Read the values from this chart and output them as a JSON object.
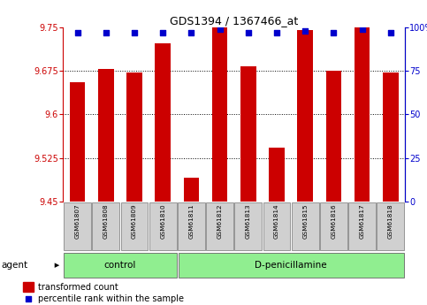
{
  "title": "GDS1394 / 1367466_at",
  "samples": [
    "GSM61807",
    "GSM61808",
    "GSM61809",
    "GSM61810",
    "GSM61811",
    "GSM61812",
    "GSM61813",
    "GSM61814",
    "GSM61815",
    "GSM61816",
    "GSM61817",
    "GSM61818"
  ],
  "bar_values": [
    9.655,
    9.678,
    9.672,
    9.722,
    9.49,
    9.75,
    9.683,
    9.542,
    9.745,
    9.676,
    9.75,
    9.673
  ],
  "percentile_ranks": [
    97,
    97,
    97,
    97,
    97,
    99,
    97,
    97,
    98,
    97,
    99,
    97
  ],
  "bar_bottom": 9.45,
  "ylim_left": [
    9.45,
    9.75
  ],
  "ylim_right": [
    0,
    100
  ],
  "yticks_left": [
    9.45,
    9.525,
    9.6,
    9.675,
    9.75
  ],
  "ytick_labels_left": [
    "9.45",
    "9.525",
    "9.6",
    "9.675",
    "9.75"
  ],
  "ytick_labels_right": [
    "0",
    "25",
    "50",
    "75",
    "100%"
  ],
  "bar_color": "#cc0000",
  "dot_color": "#0000cc",
  "n_control": 4,
  "n_treatment": 8,
  "control_label": "control",
  "treatment_label": "D-penicillamine",
  "agent_label": "agent",
  "legend_bar_label": "transformed count",
  "legend_dot_label": "percentile rank within the sample",
  "sample_label_bg": "#d0d0d0",
  "group_bg": "#90ee90"
}
